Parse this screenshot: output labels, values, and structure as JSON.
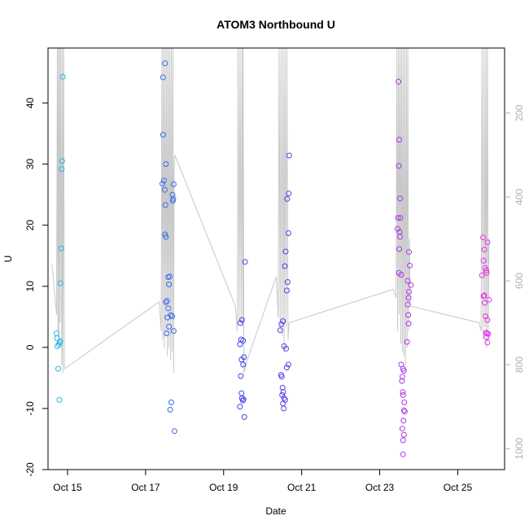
{
  "chart_data": {
    "type": "scatter",
    "title": "ATOM3 Northbound U",
    "xlabel": "Date",
    "ylabel": "U",
    "x_ticks": [
      "Oct 15",
      "Oct 17",
      "Oct 19",
      "Oct 21",
      "Oct 23",
      "Oct 25"
    ],
    "x_tick_days": [
      15,
      17,
      19,
      21,
      23,
      25
    ],
    "xlim": [
      14.5,
      26.2
    ],
    "y_ticks": [
      -20,
      -10,
      0,
      10,
      20,
      30,
      40
    ],
    "ylim": [
      -20,
      49
    ],
    "y2_ticks": [
      200,
      400,
      600,
      800,
      1000
    ],
    "y2lim": [
      1050,
      45
    ],
    "grid": false,
    "colors": {
      "start": "#29b6e8",
      "mid": "#3f3fe6",
      "end": "#e632e6",
      "depth_line": "#c8c8c8"
    },
    "points": [
      {
        "d": 14.72,
        "u": 2.3
      },
      {
        "d": 14.73,
        "u": 1.5
      },
      {
        "d": 14.74,
        "u": 0.2
      },
      {
        "d": 14.76,
        "u": -3.5
      },
      {
        "d": 14.78,
        "u": 0.5
      },
      {
        "d": 14.8,
        "u": 0.8
      },
      {
        "d": 14.81,
        "u": 1.0
      },
      {
        "d": 14.79,
        "u": -8.6
      },
      {
        "d": 14.82,
        "u": 10.5
      },
      {
        "d": 14.84,
        "u": 16.2
      },
      {
        "d": 14.85,
        "u": 29.2
      },
      {
        "d": 14.86,
        "u": 30.5
      },
      {
        "d": 14.88,
        "u": 44.3
      },
      {
        "d": 17.45,
        "u": 44.2
      },
      {
        "d": 17.5,
        "u": 46.5
      },
      {
        "d": 17.45,
        "u": 34.8
      },
      {
        "d": 17.47,
        "u": 27.3
      },
      {
        "d": 17.43,
        "u": 26.8
      },
      {
        "d": 17.52,
        "u": 30.0
      },
      {
        "d": 17.49,
        "u": 25.8
      },
      {
        "d": 17.51,
        "u": 23.3
      },
      {
        "d": 17.72,
        "u": 26.7
      },
      {
        "d": 17.69,
        "u": 25.0
      },
      {
        "d": 17.7,
        "u": 24.0
      },
      {
        "d": 17.71,
        "u": 24.3
      },
      {
        "d": 17.5,
        "u": 18.5
      },
      {
        "d": 17.52,
        "u": 18.1
      },
      {
        "d": 17.58,
        "u": 11.5
      },
      {
        "d": 17.62,
        "u": 11.6
      },
      {
        "d": 17.52,
        "u": 7.4
      },
      {
        "d": 17.55,
        "u": 7.6
      },
      {
        "d": 17.6,
        "u": 10.3
      },
      {
        "d": 17.58,
        "u": 6.4
      },
      {
        "d": 17.65,
        "u": 5.3
      },
      {
        "d": 17.68,
        "u": 5.1
      },
      {
        "d": 17.56,
        "u": 4.9
      },
      {
        "d": 17.6,
        "u": 3.4
      },
      {
        "d": 17.72,
        "u": 2.7
      },
      {
        "d": 17.54,
        "u": 2.3
      },
      {
        "d": 17.66,
        "u": -9.0
      },
      {
        "d": 17.63,
        "u": -10.2
      },
      {
        "d": 17.74,
        "u": -13.7
      },
      {
        "d": 19.43,
        "u": 4.0
      },
      {
        "d": 19.47,
        "u": 4.5
      },
      {
        "d": 19.42,
        "u": 0.5
      },
      {
        "d": 19.45,
        "u": 1.3
      },
      {
        "d": 19.5,
        "u": 1.1
      },
      {
        "d": 19.55,
        "u": 14.0
      },
      {
        "d": 19.46,
        "u": -2.0
      },
      {
        "d": 19.52,
        "u": -1.6
      },
      {
        "d": 19.5,
        "u": -2.8
      },
      {
        "d": 19.44,
        "u": -4.7
      },
      {
        "d": 19.46,
        "u": -7.5
      },
      {
        "d": 19.47,
        "u": -8.3
      },
      {
        "d": 19.49,
        "u": -8.7
      },
      {
        "d": 19.51,
        "u": -8.5
      },
      {
        "d": 19.42,
        "u": -9.7
      },
      {
        "d": 19.53,
        "u": -11.4
      },
      {
        "d": 20.45,
        "u": 2.8
      },
      {
        "d": 20.48,
        "u": 3.8
      },
      {
        "d": 20.52,
        "u": 4.3
      },
      {
        "d": 20.55,
        "u": 0.2
      },
      {
        "d": 20.6,
        "u": -0.2
      },
      {
        "d": 20.62,
        "u": -3.3
      },
      {
        "d": 20.66,
        "u": -2.8
      },
      {
        "d": 20.47,
        "u": -4.5
      },
      {
        "d": 20.49,
        "u": -4.8
      },
      {
        "d": 20.51,
        "u": -6.6
      },
      {
        "d": 20.53,
        "u": -7.3
      },
      {
        "d": 20.5,
        "u": -7.8
      },
      {
        "d": 20.55,
        "u": -8.3
      },
      {
        "d": 20.58,
        "u": -8.6
      },
      {
        "d": 20.52,
        "u": -9.2
      },
      {
        "d": 20.54,
        "u": -10.0
      },
      {
        "d": 20.57,
        "u": 13.3
      },
      {
        "d": 20.59,
        "u": 15.7
      },
      {
        "d": 20.64,
        "u": 10.7
      },
      {
        "d": 20.62,
        "u": 9.3
      },
      {
        "d": 20.63,
        "u": 24.3
      },
      {
        "d": 20.67,
        "u": 25.2
      },
      {
        "d": 20.66,
        "u": 18.7
      },
      {
        "d": 20.68,
        "u": 31.4
      },
      {
        "d": 23.48,
        "u": 43.5
      },
      {
        "d": 23.5,
        "u": 34.0
      },
      {
        "d": 23.49,
        "u": 29.7
      },
      {
        "d": 23.52,
        "u": 24.4
      },
      {
        "d": 23.47,
        "u": 21.2
      },
      {
        "d": 23.53,
        "u": 21.2
      },
      {
        "d": 23.46,
        "u": 19.4
      },
      {
        "d": 23.51,
        "u": 18.9
      },
      {
        "d": 23.52,
        "u": 18.1
      },
      {
        "d": 23.5,
        "u": 16.1
      },
      {
        "d": 23.49,
        "u": 12.2
      },
      {
        "d": 23.55,
        "u": 11.9
      },
      {
        "d": 23.75,
        "u": 15.6
      },
      {
        "d": 23.77,
        "u": 13.4
      },
      {
        "d": 23.8,
        "u": 10.2
      },
      {
        "d": 23.72,
        "u": 10.9
      },
      {
        "d": 23.75,
        "u": 9.1
      },
      {
        "d": 23.74,
        "u": 8.1
      },
      {
        "d": 23.72,
        "u": 7.0
      },
      {
        "d": 23.73,
        "u": 5.3
      },
      {
        "d": 23.74,
        "u": 3.9
      },
      {
        "d": 23.7,
        "u": 0.9
      },
      {
        "d": 23.55,
        "u": -2.8
      },
      {
        "d": 23.6,
        "u": -3.5
      },
      {
        "d": 23.62,
        "u": -3.8
      },
      {
        "d": 23.58,
        "u": -4.8
      },
      {
        "d": 23.57,
        "u": -5.5
      },
      {
        "d": 23.59,
        "u": -7.3
      },
      {
        "d": 23.6,
        "u": -7.8
      },
      {
        "d": 23.63,
        "u": -9.0
      },
      {
        "d": 23.62,
        "u": -10.3
      },
      {
        "d": 23.64,
        "u": -10.5
      },
      {
        "d": 23.61,
        "u": -12.0
      },
      {
        "d": 23.58,
        "u": -13.3
      },
      {
        "d": 23.62,
        "u": -14.3
      },
      {
        "d": 23.6,
        "u": -15.2
      },
      {
        "d": 23.6,
        "u": -17.5
      },
      {
        "d": 25.65,
        "u": 18.0
      },
      {
        "d": 25.76,
        "u": 17.2
      },
      {
        "d": 25.68,
        "u": 16.0
      },
      {
        "d": 25.66,
        "u": 14.2
      },
      {
        "d": 25.7,
        "u": 13.0
      },
      {
        "d": 25.73,
        "u": 12.6
      },
      {
        "d": 25.74,
        "u": 12.2
      },
      {
        "d": 25.62,
        "u": 11.8
      },
      {
        "d": 25.66,
        "u": 8.4
      },
      {
        "d": 25.68,
        "u": 8.5
      },
      {
        "d": 25.8,
        "u": 7.8
      },
      {
        "d": 25.69,
        "u": 7.3
      },
      {
        "d": 25.71,
        "u": 5.1
      },
      {
        "d": 25.76,
        "u": 4.5
      },
      {
        "d": 25.72,
        "u": 2.4
      },
      {
        "d": 25.75,
        "u": 2.3
      },
      {
        "d": 25.78,
        "u": 2.2
      },
      {
        "d": 25.74,
        "u": 1.7
      },
      {
        "d": 25.76,
        "u": 0.8
      }
    ],
    "depth_trace": [
      {
        "d": 14.6,
        "z": 560
      },
      {
        "d": 14.72,
        "z": 680
      },
      {
        "d": 14.74,
        "z": 45
      },
      {
        "d": 14.75,
        "z": 720
      },
      {
        "d": 14.77,
        "z": 45
      },
      {
        "d": 14.78,
        "z": 750
      },
      {
        "d": 14.8,
        "z": 45
      },
      {
        "d": 14.81,
        "z": 700
      },
      {
        "d": 14.83,
        "z": 45
      },
      {
        "d": 14.85,
        "z": 800
      },
      {
        "d": 14.87,
        "z": 45
      },
      {
        "d": 14.88,
        "z": 820
      },
      {
        "d": 14.9,
        "z": 45
      },
      {
        "d": 14.92,
        "z": 810
      },
      {
        "d": 17.35,
        "z": 650
      },
      {
        "d": 17.4,
        "z": 720
      },
      {
        "d": 17.42,
        "z": 45
      },
      {
        "d": 17.44,
        "z": 740
      },
      {
        "d": 17.46,
        "z": 45
      },
      {
        "d": 17.48,
        "z": 760
      },
      {
        "d": 17.5,
        "z": 45
      },
      {
        "d": 17.52,
        "z": 730
      },
      {
        "d": 17.54,
        "z": 45
      },
      {
        "d": 17.56,
        "z": 780
      },
      {
        "d": 17.58,
        "z": 45
      },
      {
        "d": 17.6,
        "z": 760
      },
      {
        "d": 17.62,
        "z": 45
      },
      {
        "d": 17.64,
        "z": 790
      },
      {
        "d": 17.66,
        "z": 45
      },
      {
        "d": 17.68,
        "z": 770
      },
      {
        "d": 17.7,
        "z": 45
      },
      {
        "d": 17.72,
        "z": 820
      },
      {
        "d": 17.73,
        "z": 330
      },
      {
        "d": 17.75,
        "z": 300
      },
      {
        "d": 19.3,
        "z": 660
      },
      {
        "d": 19.35,
        "z": 720
      },
      {
        "d": 19.37,
        "z": 45
      },
      {
        "d": 19.4,
        "z": 690
      },
      {
        "d": 19.42,
        "z": 45
      },
      {
        "d": 19.45,
        "z": 700
      },
      {
        "d": 19.47,
        "z": 45
      },
      {
        "d": 19.49,
        "z": 710
      },
      {
        "d": 19.5,
        "z": 45
      },
      {
        "d": 19.52,
        "z": 820
      },
      {
        "d": 19.6,
        "z": 790
      },
      {
        "d": 20.35,
        "z": 590
      },
      {
        "d": 20.4,
        "z": 690
      },
      {
        "d": 20.42,
        "z": 45
      },
      {
        "d": 20.45,
        "z": 720
      },
      {
        "d": 20.47,
        "z": 45
      },
      {
        "d": 20.5,
        "z": 730
      },
      {
        "d": 20.52,
        "z": 45
      },
      {
        "d": 20.55,
        "z": 770
      },
      {
        "d": 20.57,
        "z": 45
      },
      {
        "d": 20.6,
        "z": 710
      },
      {
        "d": 20.62,
        "z": 45
      },
      {
        "d": 20.65,
        "z": 740
      },
      {
        "d": 20.68,
        "z": 700
      },
      {
        "d": 23.35,
        "z": 620
      },
      {
        "d": 23.42,
        "z": 640
      },
      {
        "d": 23.44,
        "z": 45
      },
      {
        "d": 23.46,
        "z": 720
      },
      {
        "d": 23.48,
        "z": 45
      },
      {
        "d": 23.5,
        "z": 680
      },
      {
        "d": 23.52,
        "z": 45
      },
      {
        "d": 23.54,
        "z": 750
      },
      {
        "d": 23.56,
        "z": 45
      },
      {
        "d": 23.58,
        "z": 770
      },
      {
        "d": 23.6,
        "z": 45
      },
      {
        "d": 23.62,
        "z": 780
      },
      {
        "d": 23.64,
        "z": 45
      },
      {
        "d": 23.66,
        "z": 800
      },
      {
        "d": 23.68,
        "z": 45
      },
      {
        "d": 23.7,
        "z": 760
      },
      {
        "d": 23.72,
        "z": 45
      },
      {
        "d": 23.74,
        "z": 720
      },
      {
        "d": 23.76,
        "z": 500
      },
      {
        "d": 23.78,
        "z": 660
      },
      {
        "d": 25.55,
        "z": 700
      },
      {
        "d": 25.6,
        "z": 720
      },
      {
        "d": 25.62,
        "z": 45
      },
      {
        "d": 25.65,
        "z": 740
      },
      {
        "d": 25.67,
        "z": 45
      },
      {
        "d": 25.7,
        "z": 710
      },
      {
        "d": 25.72,
        "z": 45
      },
      {
        "d": 25.74,
        "z": 760
      },
      {
        "d": 25.76,
        "z": 45
      },
      {
        "d": 25.78,
        "z": 730
      },
      {
        "d": 25.8,
        "z": 500
      }
    ]
  }
}
